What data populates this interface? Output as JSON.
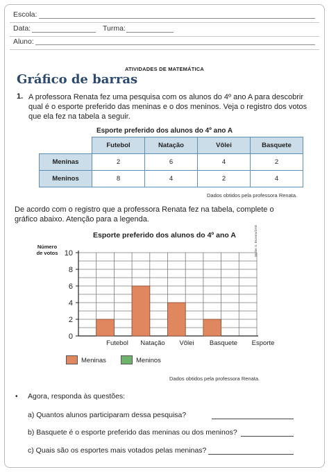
{
  "header": {
    "escola_label": "Escola:",
    "data_label": "Data:",
    "turma_label": "Turma:",
    "aluno_label": "Aluno:"
  },
  "kicker": "ATIVIDADES DE MATEMÁTICA",
  "title": "Gráfico de barras",
  "exercise": {
    "number": "1.",
    "line1": "A professora Renata fez uma pesquisa com os alunos do 4º ano A para descobrir",
    "line2": "qual é o esporte preferido das meninas e o dos meninos. Veja o registro dos votos",
    "line3": "que ela fez na tabela a seguir."
  },
  "table": {
    "title": "Esporte preferido dos alunos do 4º ano A",
    "columns": [
      "Futebol",
      "Natação",
      "Vôlei",
      "Basquete"
    ],
    "rows": [
      {
        "label": "Meninas",
        "values": [
          "2",
          "6",
          "4",
          "2"
        ]
      },
      {
        "label": "Meninos",
        "values": [
          "8",
          "4",
          "2",
          "4"
        ]
      }
    ],
    "source": "Dados obtidos pela professora Renata."
  },
  "instruction": {
    "line1": "De acordo com o registro que a professora Renata fez na tabela, complete o",
    "line2": "gráfico abaixo. Atenção para a legenda."
  },
  "chart_data": {
    "type": "bar",
    "title": "Esporte preferido dos alunos do 4º ano A",
    "ylabel_line1": "Número",
    "ylabel_line2": "de votos",
    "xlabel": "Esporte",
    "categories": [
      "Futebol",
      "Natação",
      "Vôlei",
      "Basquete"
    ],
    "series": [
      {
        "name": "Meninas",
        "values": [
          2,
          6,
          4,
          2
        ],
        "color": "#e0875f"
      },
      {
        "name": "Meninos",
        "values": [
          null,
          null,
          null,
          null
        ],
        "color": "#6db36a"
      }
    ],
    "yticks": [
      "0",
      "2",
      "4",
      "6",
      "8",
      "10"
    ],
    "ylim": [
      0,
      10
    ],
    "grid": true,
    "credit": "Walter S. Bezerra/DAB",
    "source": "Dados obtidos pela professora Renata."
  },
  "questions": {
    "intro": "Agora, responda às questões:",
    "a": "a)  Quantos alunos participaram dessa pesquisa?",
    "b": "b)  Basquete é o esporte preferido das meninas ou dos meninos?",
    "c": "c)  Quais são os esportes mais votados pelas meninas?"
  }
}
